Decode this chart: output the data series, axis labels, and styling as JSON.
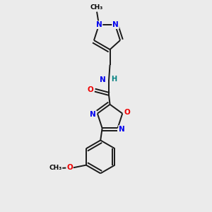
{
  "background_color": "#ebebeb",
  "bond_color": "#1a1a1a",
  "atom_colors": {
    "N": "#0000ee",
    "O": "#ee0000",
    "H": "#008080",
    "C": "#1a1a1a"
  },
  "lw": 1.4
}
